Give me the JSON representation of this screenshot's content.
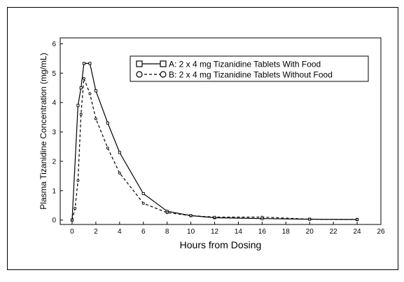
{
  "chart_data": {
    "type": "line",
    "title": "",
    "xlabel": "Hours from Dosing",
    "ylabel": "Plasma Tizanidine Concentration  (mg/mL)",
    "xlim": [
      -1,
      26
    ],
    "ylim": [
      -0.15,
      6.2
    ],
    "xticks": [
      0,
      2,
      4,
      6,
      8,
      10,
      12,
      14,
      16,
      18,
      20,
      22,
      24,
      26
    ],
    "yticks": [
      0,
      1,
      2,
      3,
      4,
      5,
      6
    ],
    "grid": false,
    "legend_position": "top-right",
    "series": [
      {
        "name": "A: 2 x 4 mg Tizanidine Tablets With Food",
        "marker": "square",
        "line_style": "solid",
        "x": [
          0,
          0.5,
          0.75,
          1,
          1.5,
          2,
          3,
          4,
          6,
          8,
          10,
          12,
          16,
          20,
          24
        ],
        "y": [
          0,
          3.9,
          4.5,
          5.33,
          5.33,
          4.4,
          3.3,
          2.3,
          0.9,
          0.3,
          0.15,
          0.08,
          0.05,
          0.03,
          0.02
        ]
      },
      {
        "name": "B: 2 x 4 mg Tizanidine Tablets Without Food",
        "marker": "circle",
        "line_style": "dashed",
        "x": [
          0,
          0.25,
          0.5,
          0.75,
          1,
          1.5,
          2,
          3,
          4,
          6,
          8,
          10,
          12,
          16,
          20,
          24
        ],
        "y": [
          0,
          0.4,
          1.35,
          3.6,
          4.82,
          4.3,
          3.45,
          2.45,
          1.6,
          0.57,
          0.25,
          0.15,
          0.1,
          0.1,
          0.03,
          0.02
        ]
      }
    ]
  }
}
